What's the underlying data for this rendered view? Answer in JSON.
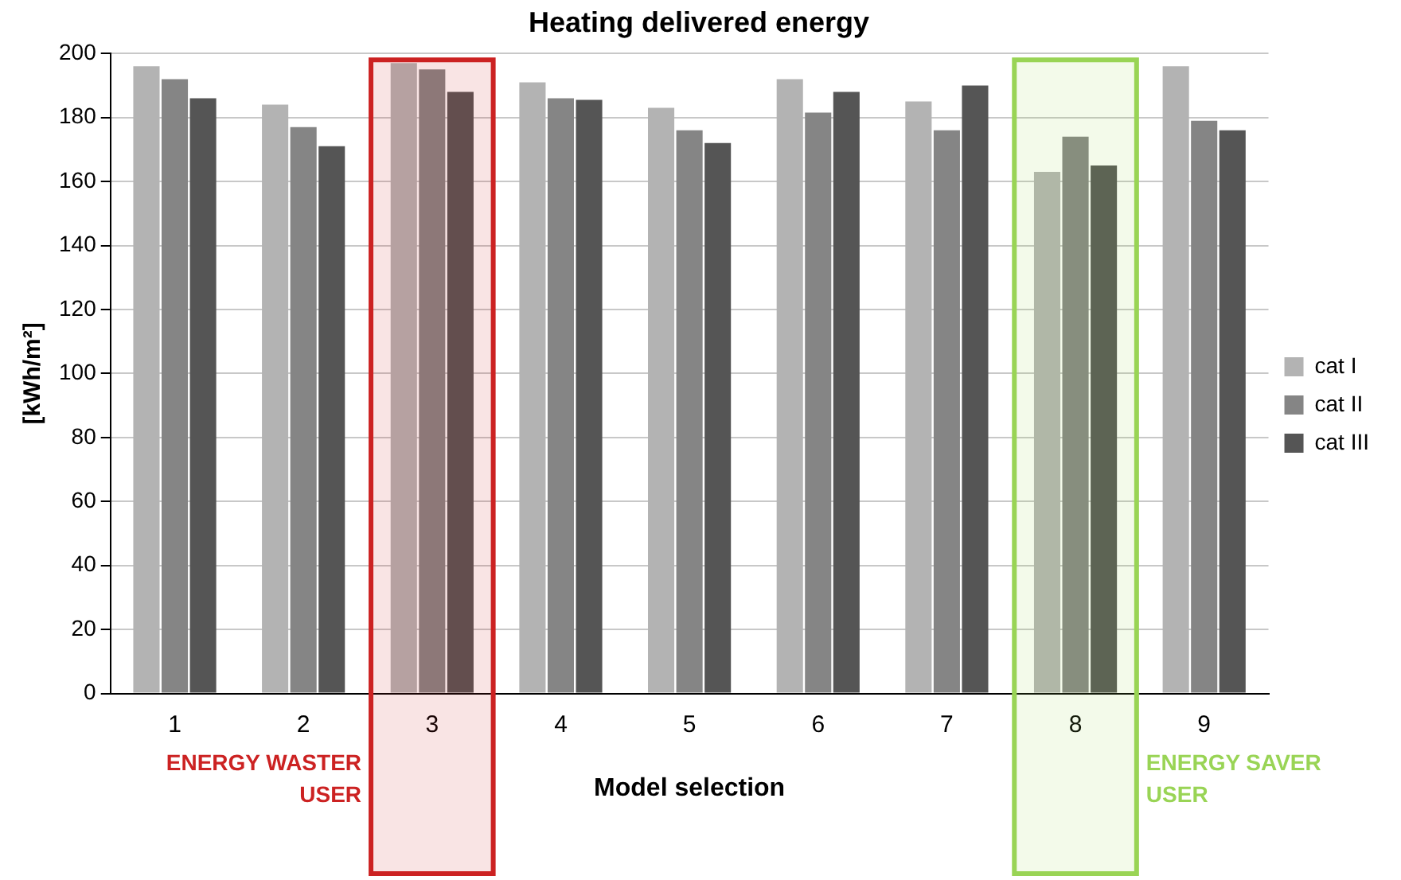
{
  "chart_data": {
    "type": "bar",
    "title": "Heating delivered energy",
    "xlabel": "Model selection",
    "ylabel": "[kWh/m²]",
    "categories": [
      "1",
      "2",
      "3",
      "4",
      "5",
      "6",
      "7",
      "8",
      "9"
    ],
    "series": [
      {
        "name": "cat I",
        "color": "#b3b3b3",
        "values": [
          196,
          184,
          197,
          191,
          183,
          192,
          185,
          163,
          196
        ]
      },
      {
        "name": "cat II",
        "color": "#858585",
        "values": [
          192,
          177,
          195,
          186,
          176,
          181.5,
          176,
          174,
          179
        ]
      },
      {
        "name": "cat III",
        "color": "#555555",
        "values": [
          186,
          171,
          188,
          185.5,
          172,
          188,
          190,
          165,
          176
        ]
      }
    ],
    "ylim": [
      0,
      200
    ],
    "yticks": [
      0,
      20,
      40,
      60,
      80,
      100,
      120,
      140,
      160,
      180,
      200
    ],
    "grid": "y",
    "legend": "right",
    "bands": [
      {
        "axis": "x",
        "from": "3",
        "to": "3",
        "label": "ENERGY WASTER USER",
        "color": "#cc2222"
      },
      {
        "axis": "x",
        "from": "8",
        "to": "8",
        "label": "ENERGY SAVER USER",
        "color": "#99d455"
      }
    ]
  }
}
